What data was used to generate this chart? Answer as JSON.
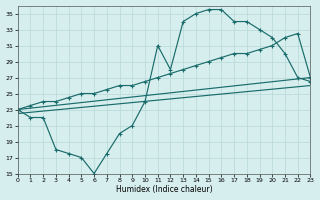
{
  "xlabel": "Humidex (Indice chaleur)",
  "xlim": [
    0,
    23
  ],
  "ylim": [
    15,
    36
  ],
  "xticks": [
    0,
    1,
    2,
    3,
    4,
    5,
    6,
    7,
    8,
    9,
    10,
    11,
    12,
    13,
    14,
    15,
    16,
    17,
    18,
    19,
    20,
    21,
    22,
    23
  ],
  "yticks": [
    15,
    17,
    19,
    21,
    23,
    25,
    27,
    29,
    31,
    33,
    35
  ],
  "bg_color": "#d7eeee",
  "line_color": "#1a6b6b",
  "grid_color": "#b8d8d8",
  "line1_x": [
    0,
    1,
    2,
    3,
    4,
    5,
    6,
    7,
    8,
    9,
    10,
    11,
    12,
    13,
    14,
    15,
    16,
    17,
    18,
    19,
    20,
    21,
    22,
    23
  ],
  "line1_y": [
    23,
    22,
    22,
    18,
    17.5,
    17,
    15,
    17.5,
    20,
    21,
    24,
    31,
    28,
    34,
    35,
    35.5,
    35.5,
    34,
    34,
    33,
    32,
    30,
    27,
    26.5
  ],
  "line2_x": [
    0,
    1,
    2,
    3,
    4,
    5,
    6,
    7,
    8,
    9,
    10,
    11,
    12,
    13,
    14,
    15,
    16,
    17,
    18,
    19,
    20,
    21,
    22,
    23
  ],
  "line2_y": [
    23,
    23.5,
    24,
    24,
    24.5,
    25,
    25,
    25.5,
    26,
    26,
    26.5,
    27,
    27.5,
    28,
    28.5,
    29,
    29.5,
    30,
    30,
    30.5,
    31,
    32,
    32.5,
    27
  ],
  "line3_x": [
    0,
    23
  ],
  "line3_y": [
    23,
    27
  ],
  "line4_x": [
    0,
    23
  ],
  "line4_y": [
    22.5,
    26
  ]
}
